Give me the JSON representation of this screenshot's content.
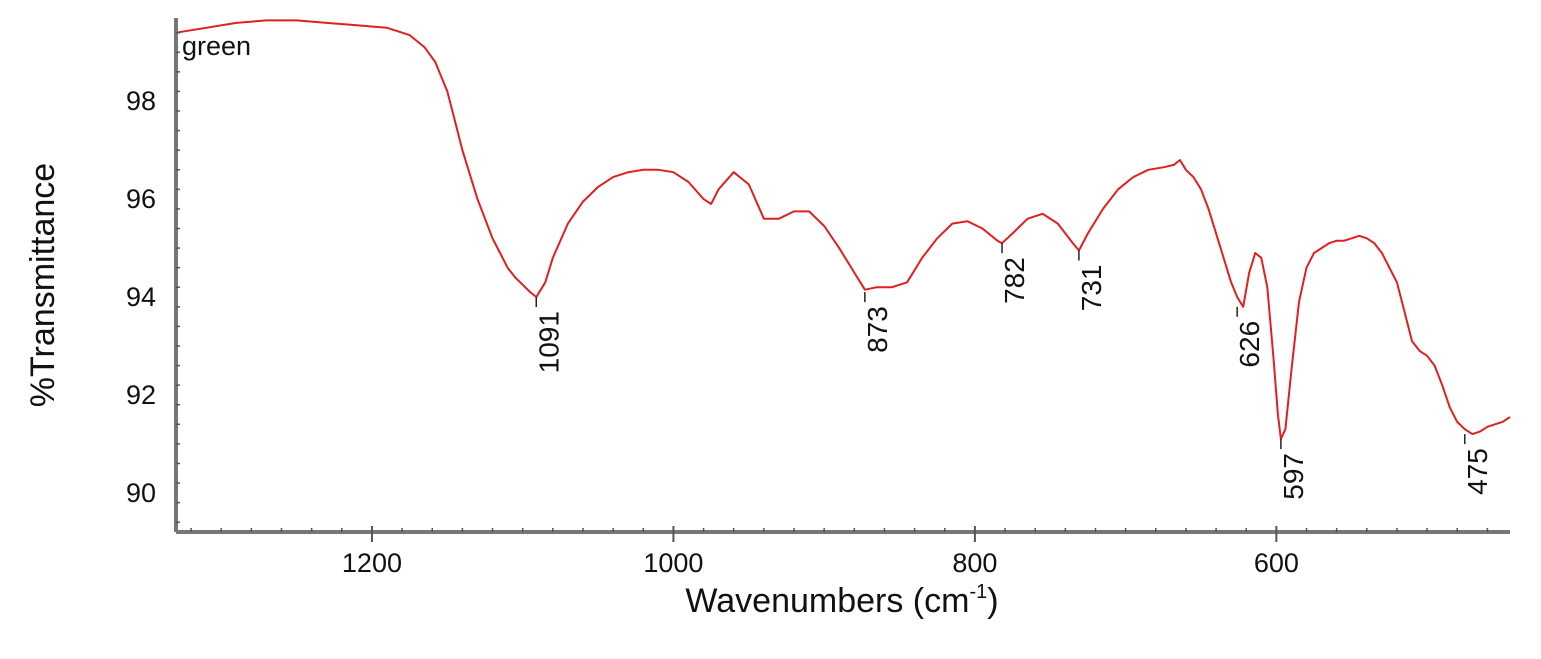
{
  "chart_data": {
    "type": "line",
    "title": "",
    "xlabel": "Wavenumbers (cm",
    "xlabel_superscript": "-1",
    "xlabel_suffix": ")",
    "ylabel": "%Transmittance",
    "xlim": [
      1330,
      445
    ],
    "ylim": [
      89.2,
      99.7
    ],
    "x_reversed": true,
    "grid": false,
    "legend": "none",
    "xticks": [
      1200,
      1000,
      800,
      600
    ],
    "yticks": [
      90,
      92,
      94,
      96,
      98
    ],
    "line_color": "#e02020",
    "series": [
      {
        "name": "green",
        "x": [
          1330,
          1310,
          1290,
          1270,
          1250,
          1230,
          1210,
          1190,
          1175,
          1165,
          1158,
          1150,
          1145,
          1140,
          1135,
          1130,
          1125,
          1120,
          1115,
          1110,
          1105,
          1100,
          1095,
          1091,
          1085,
          1080,
          1070,
          1060,
          1050,
          1040,
          1030,
          1020,
          1010,
          1000,
          990,
          980,
          975,
          970,
          960,
          950,
          940,
          930,
          920,
          910,
          900,
          890,
          880,
          873,
          865,
          855,
          845,
          835,
          825,
          815,
          805,
          795,
          785,
          782,
          775,
          765,
          755,
          745,
          740,
          735,
          731,
          725,
          715,
          705,
          695,
          685,
          675,
          668,
          664,
          660,
          655,
          650,
          645,
          640,
          635,
          630,
          626,
          622,
          618,
          614,
          610,
          606,
          602,
          599,
          597,
          594,
          590,
          585,
          580,
          575,
          570,
          565,
          560,
          555,
          550,
          545,
          540,
          535,
          530,
          525,
          520,
          515,
          510,
          505,
          500,
          495,
          490,
          485,
          480,
          475,
          470,
          465,
          460,
          455,
          450,
          445
        ],
        "y": [
          99.4,
          99.5,
          99.6,
          99.65,
          99.65,
          99.6,
          99.55,
          99.5,
          99.35,
          99.1,
          98.8,
          98.2,
          97.6,
          97.0,
          96.5,
          96.0,
          95.6,
          95.2,
          94.9,
          94.6,
          94.4,
          94.25,
          94.1,
          94.0,
          94.3,
          94.8,
          95.5,
          95.95,
          96.25,
          96.45,
          96.55,
          96.6,
          96.6,
          96.55,
          96.35,
          96.0,
          95.9,
          96.2,
          96.55,
          96.3,
          95.6,
          95.6,
          95.75,
          95.75,
          95.45,
          95.0,
          94.5,
          94.15,
          94.2,
          94.2,
          94.3,
          94.8,
          95.2,
          95.5,
          95.55,
          95.4,
          95.15,
          95.1,
          95.3,
          95.6,
          95.7,
          95.5,
          95.3,
          95.1,
          94.95,
          95.3,
          95.8,
          96.2,
          96.45,
          96.6,
          96.65,
          96.7,
          96.8,
          96.6,
          96.45,
          96.2,
          95.8,
          95.3,
          94.8,
          94.3,
          94.0,
          93.8,
          94.5,
          94.9,
          94.8,
          94.2,
          92.8,
          91.6,
          91.1,
          91.3,
          92.5,
          93.9,
          94.6,
          94.9,
          95.0,
          95.1,
          95.15,
          95.15,
          95.2,
          95.25,
          95.2,
          95.1,
          94.9,
          94.6,
          94.3,
          93.7,
          93.1,
          92.9,
          92.8,
          92.6,
          92.2,
          91.75,
          91.45,
          91.3,
          91.2,
          91.25,
          91.35,
          91.4,
          91.45,
          91.55
        ]
      }
    ],
    "peak_labels": [
      {
        "label": "1091",
        "x": 1091,
        "y": 94.0
      },
      {
        "label": "873",
        "x": 873,
        "y": 94.1
      },
      {
        "label": "782",
        "x": 782,
        "y": 95.1
      },
      {
        "label": "731",
        "x": 731,
        "y": 94.95
      },
      {
        "label": "626",
        "x": 626,
        "y": 93.8
      },
      {
        "label": "597",
        "x": 597,
        "y": 91.1
      },
      {
        "label": "475",
        "x": 475,
        "y": 91.2
      }
    ]
  }
}
